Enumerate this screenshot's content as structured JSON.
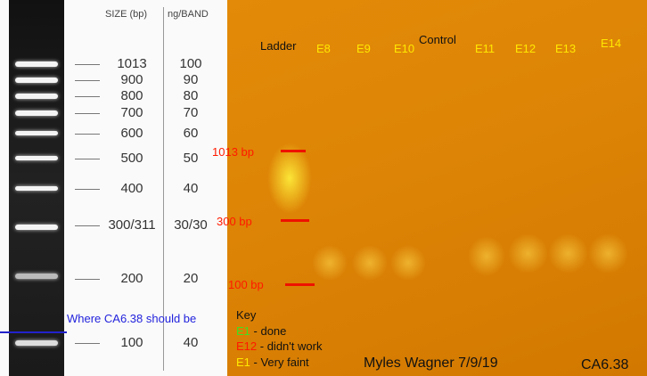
{
  "ladder": {
    "header": {
      "size": "SIZE (bp)",
      "ng": "ng/BAND"
    },
    "rows": [
      [
        "1013",
        "100"
      ],
      [
        "900",
        "90"
      ],
      [
        "800",
        "80"
      ],
      [
        "700",
        "70"
      ],
      [
        "600",
        "60"
      ],
      [
        "500",
        "50"
      ],
      [
        "400",
        "40"
      ],
      [
        "300/311",
        "30/30"
      ],
      [
        "200",
        "20"
      ],
      [
        "100",
        "40"
      ]
    ],
    "annotation": "Where CA6.38 should be"
  },
  "gel": {
    "lanes": [
      "Ladder",
      "E8",
      "E9",
      "E10",
      "Control",
      "E11",
      "E12",
      "E13",
      "E14"
    ],
    "markers": [
      "1013 bp",
      "300 bp",
      "100 bp"
    ],
    "key": {
      "title": "Key",
      "items": [
        {
          "code": "E1",
          "text": "- done"
        },
        {
          "code": "E12",
          "text": "- didn't work"
        },
        {
          "code": "E1",
          "text": "- Very faint"
        }
      ]
    },
    "author": "Myles Wagner 7/9/19",
    "sample": "CA6.38"
  }
}
